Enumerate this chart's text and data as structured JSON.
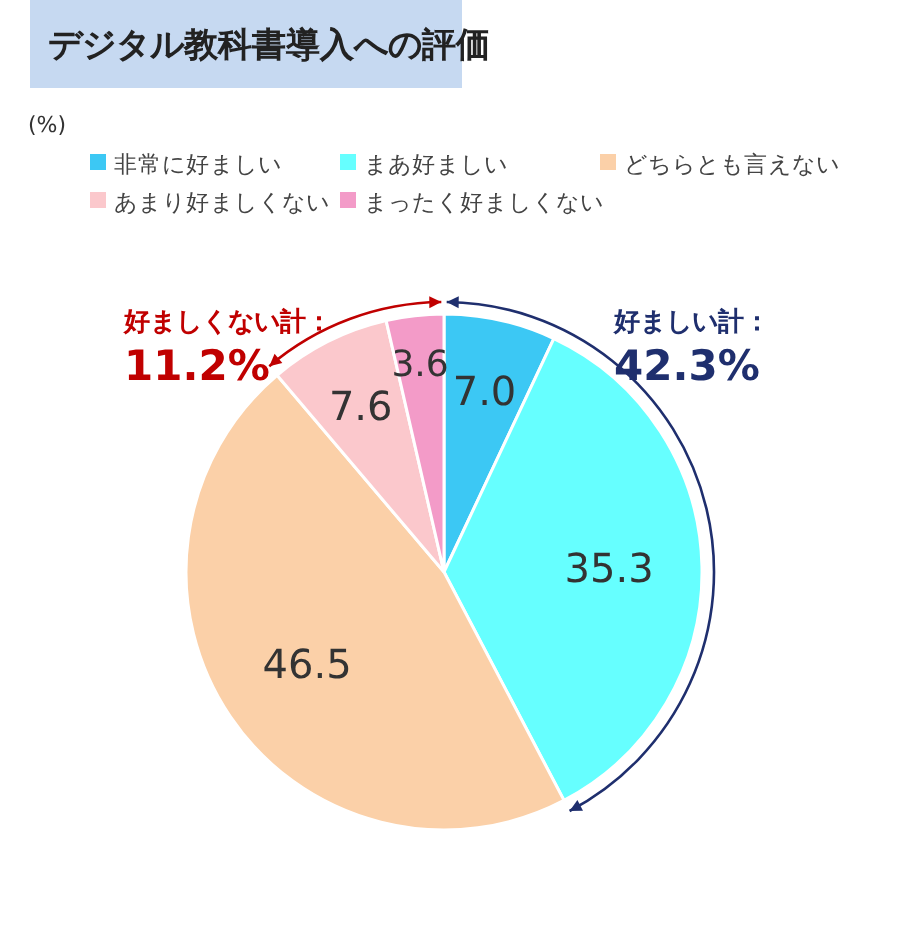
{
  "chart_data": {
    "type": "pie",
    "title": "デジタル教科書導入への評価",
    "categories": [
      "非常に好ましい",
      "まあ好ましい",
      "どちらとも言えない",
      "あまり好ましくない",
      "まったく好ましくない"
    ],
    "values": [
      7.0,
      35.3,
      46.5,
      7.6,
      3.6
    ],
    "colors": [
      "#3cc8f4",
      "#66ffff",
      "#fbd0a8",
      "#fbc8cc",
      "#f39bc8"
    ],
    "value_labels": [
      "7.0",
      "35.3",
      "46.5",
      "7.6",
      "3.6"
    ],
    "legend": "top",
    "annotations": [
      "(%)",
      "好ましい計：",
      "42.3%",
      "好ましくない計：",
      "11.2%"
    ]
  }
}
